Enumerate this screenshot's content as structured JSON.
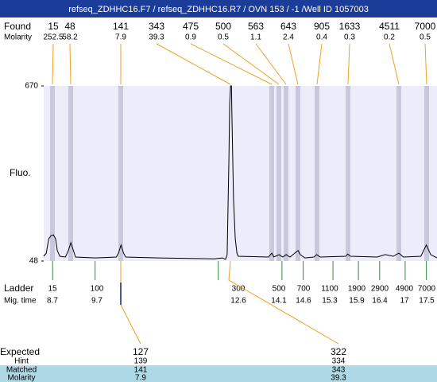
{
  "header": {
    "title": "refseq_ZDHHC16.F7 / refseq_ZDHHC16.R7 / OVN 153 / -1 /Well ID 1057003"
  },
  "found": {
    "label": "Found",
    "molarity_label": "Molarity",
    "sizes": [
      15,
      48,
      141,
      343,
      475,
      500,
      563,
      643,
      905,
      1633,
      4511,
      7000
    ],
    "molarity": [
      252.5,
      58.2,
      7.9,
      39.3,
      0.9,
      0.5,
      1.1,
      2.4,
      0.4,
      0.3,
      0.2,
      0.5
    ]
  },
  "plot": {
    "y_label": "Fluo.",
    "ylim": [
      48,
      670
    ],
    "yticks": [
      48,
      670
    ],
    "xlim": [
      8.49,
      17.75
    ],
    "trace": {
      "color": "#000000",
      "x": [
        8.49,
        8.55,
        8.61,
        8.66,
        8.72,
        8.77,
        8.81,
        8.87,
        9.0,
        9.07,
        9.13,
        9.19,
        9.24,
        9.71,
        10.2,
        10.25,
        10.31,
        10.37,
        10.42,
        11.2,
        12.51,
        12.7,
        12.77,
        12.81,
        12.85,
        12.87,
        12.89,
        12.91,
        12.92,
        12.96,
        13.0,
        13.04,
        13.07,
        13.78,
        13.86,
        13.91,
        14.03,
        14.12,
        14.2,
        14.29,
        14.4,
        14.48,
        14.53,
        14.64,
        14.85,
        14.92,
        15.0,
        15.6,
        15.65,
        15.71,
        16.34,
        16.53,
        16.72,
        16.85,
        16.96,
        17.37,
        17.5,
        17.6,
        17.75
      ],
      "y": [
        65,
        76,
        127,
        138,
        141,
        127,
        85,
        65,
        62,
        85,
        113,
        85,
        62,
        59,
        62,
        76,
        105,
        76,
        62,
        59,
        56,
        59,
        54,
        71,
        410,
        608,
        670,
        670,
        580,
        268,
        127,
        76,
        65,
        62,
        76,
        62,
        71,
        62,
        71,
        62,
        76,
        85,
        71,
        59,
        62,
        71,
        62,
        65,
        73,
        65,
        62,
        71,
        65,
        76,
        62,
        65,
        105,
        71,
        59
      ]
    }
  },
  "ladder": {
    "label": "Ladder",
    "mig_label": "Mig. time",
    "color": "#2e8b3a",
    "sizes": [
      15,
      100,
      300,
      500,
      700,
      1100,
      1900,
      2900,
      4900,
      7000
    ],
    "mig_times": [
      8.7,
      9.7,
      12.6,
      14.1,
      14.6,
      15.3,
      15.9,
      16.4,
      17,
      17.5
    ]
  },
  "expected": {
    "expected_label": "Expected",
    "hint_label": "Hint",
    "matched_label": "Matched",
    "molarity_label": "Molarity",
    "peaks": [
      {
        "expected": 127,
        "hint": 139,
        "matched": 141,
        "molarity": 7.9
      },
      {
        "expected": 322,
        "hint": 334,
        "matched": 343,
        "molarity": 39.3
      }
    ]
  }
}
